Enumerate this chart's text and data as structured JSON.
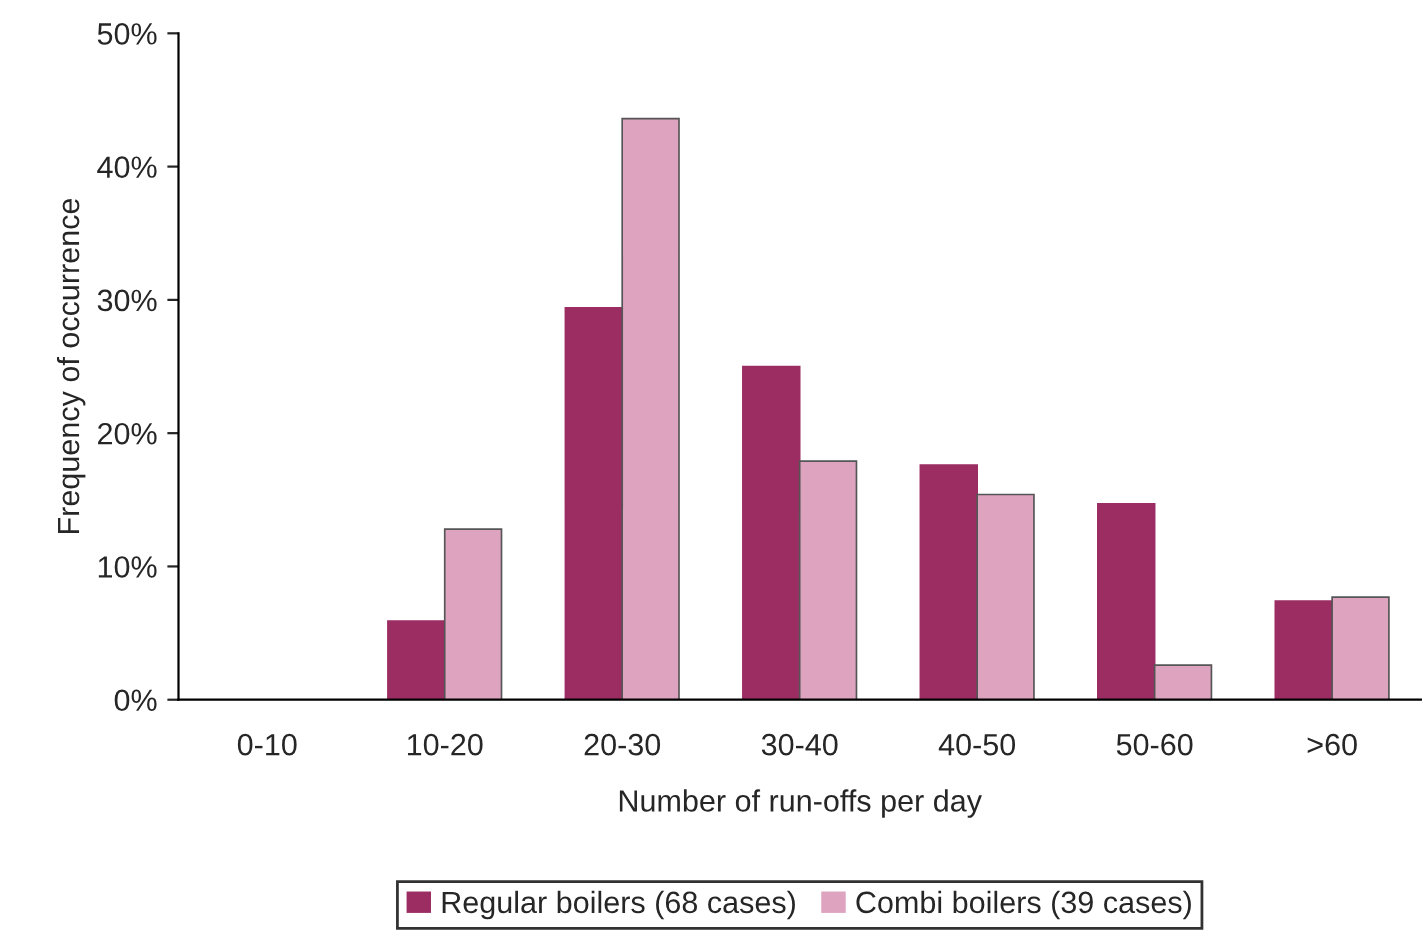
{
  "chart_data": {
    "type": "bar",
    "xlabel": "Number of run-offs per day",
    "ylabel": "Frequency of occurrence",
    "categories": [
      "0-10",
      "10-20",
      "20-30",
      "30-40",
      "40-50",
      "50-60",
      ">60"
    ],
    "series": [
      {
        "name": "Regular boilers (68 cases)",
        "color": "#9b2d62",
        "values": [
          0,
          5.9,
          29.4,
          25.0,
          17.6,
          14.7,
          7.4
        ]
      },
      {
        "name": "Combi boilers (39 cases)",
        "color": "#dda3bf",
        "values": [
          0,
          12.8,
          43.6,
          17.9,
          15.4,
          2.6,
          7.7
        ]
      }
    ],
    "ylim": [
      0,
      50
    ],
    "yticks": [
      {
        "value": 0,
        "label": "0%"
      },
      {
        "value": 10,
        "label": "10%"
      },
      {
        "value": 20,
        "label": "20%"
      },
      {
        "value": 30,
        "label": "30%"
      },
      {
        "value": 40,
        "label": "40%"
      },
      {
        "value": 50,
        "label": "50%"
      }
    ],
    "grid": false,
    "legend": "bottom"
  }
}
